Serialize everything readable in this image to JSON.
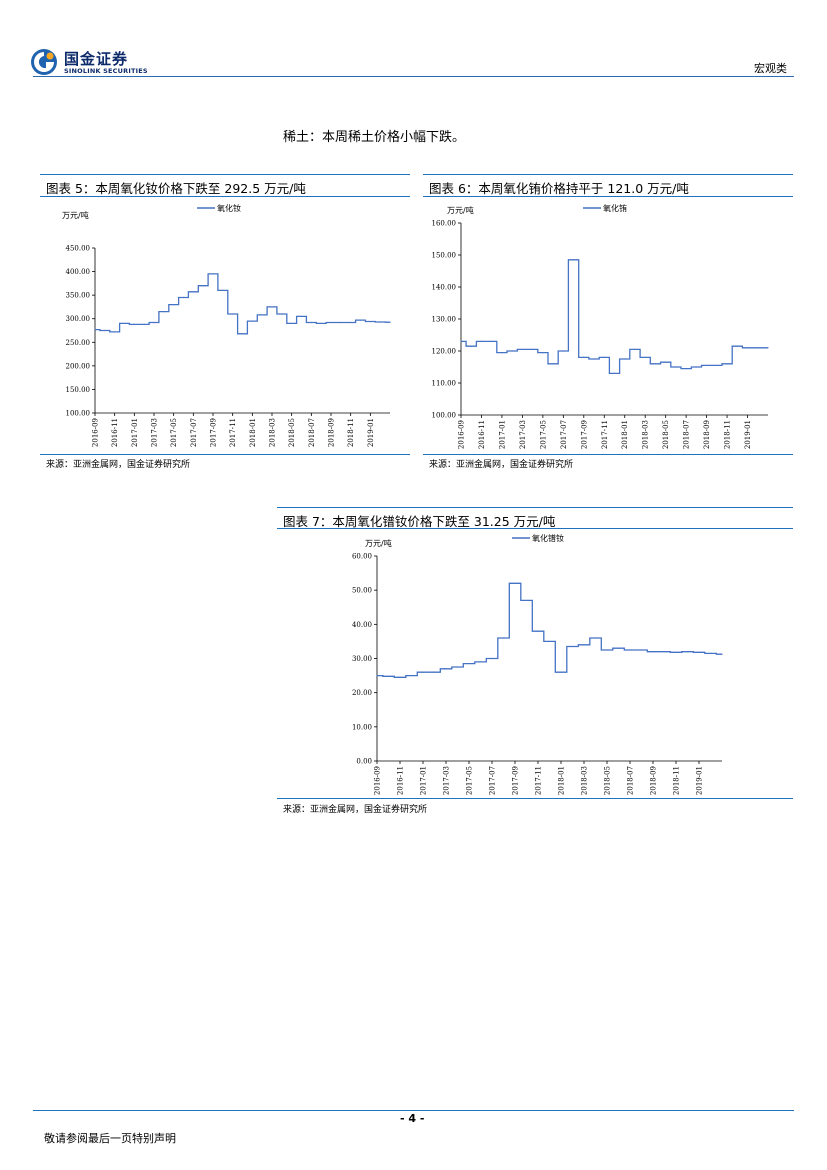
{
  "header": {
    "logo_cn": "国金证券",
    "logo_en": "SINOLINK SECURITIES",
    "category": "宏观类",
    "brand_color": "#0d2a6b",
    "accent_color": "#1e73be"
  },
  "intro": "稀土：本周稀土价格小幅下跌。",
  "figures": [
    {
      "title": "图表 5：本周氧化钕价格下跌至 292.5 万元/吨",
      "source": "来源：亚洲金属网，国金证券研究所",
      "unit": "万元/吨",
      "legend": "氧化钕"
    },
    {
      "title": "图表 6：本周氧化铕价格持平于 121.0 万元/吨",
      "source": "来源：亚洲金属网，国金证券研究所",
      "unit": "万元/吨",
      "legend": "氧化铕"
    },
    {
      "title": "图表 7：本周氧化镨钕价格下跌至 31.25 万元/吨",
      "source": "来源：亚洲金属网，国金证券研究所",
      "unit": "万元/吨",
      "legend": "氧化镨钕"
    }
  ],
  "footer": {
    "page": "- 4 -",
    "disclaimer": "敬请参阅最后一页特别声明"
  },
  "chart_data": [
    {
      "type": "line",
      "series": [
        {
          "name": "氧化钕",
          "color": "#4472c4",
          "x": [
            "2016-09",
            "2016-10",
            "2016-11",
            "2016-12",
            "2017-01",
            "2017-02",
            "2017-03",
            "2017-04",
            "2017-05",
            "2017-06",
            "2017-07",
            "2017-08",
            "2017-09",
            "2017-10",
            "2017-11",
            "2017-12",
            "2018-01",
            "2018-02",
            "2018-03",
            "2018-04",
            "2018-05",
            "2018-06",
            "2018-07",
            "2018-08",
            "2018-09",
            "2018-10",
            "2018-11",
            "2018-12",
            "2019-01",
            "2019-02",
            "2019-03"
          ],
          "values": [
            277,
            275,
            272,
            290,
            288,
            288,
            292,
            315,
            330,
            345,
            357,
            370,
            395,
            360,
            310,
            268,
            295,
            308,
            325,
            310,
            290,
            305,
            292,
            290,
            292,
            292,
            292,
            297,
            294,
            293,
            292.5
          ]
        }
      ],
      "x_ticks": [
        "2016-09",
        "2016-11",
        "2017-01",
        "2017-03",
        "2017-05",
        "2017-07",
        "2017-09",
        "2017-11",
        "2018-01",
        "2018-03",
        "2018-05",
        "2018-07",
        "2018-09",
        "2018-11",
        "2019-01"
      ],
      "y_ticks": [
        "100.00",
        "150.00",
        "200.00",
        "250.00",
        "300.00",
        "350.00",
        "400.00",
        "450.00"
      ],
      "ylim": [
        100,
        450
      ]
    },
    {
      "type": "line",
      "series": [
        {
          "name": "氧化铕",
          "color": "#4472c4",
          "x": [
            "2016-09",
            "2016-10",
            "2016-11",
            "2016-12",
            "2017-01",
            "2017-02",
            "2017-03",
            "2017-04",
            "2017-05",
            "2017-06",
            "2017-07",
            "2017-08",
            "2017-09",
            "2017-10",
            "2017-11",
            "2017-12",
            "2018-01",
            "2018-02",
            "2018-03",
            "2018-04",
            "2018-05",
            "2018-06",
            "2018-07",
            "2018-08",
            "2018-09",
            "2018-10",
            "2018-11",
            "2018-12",
            "2019-01",
            "2019-02",
            "2019-03"
          ],
          "values": [
            123,
            121.5,
            123,
            123,
            119.5,
            120,
            120.5,
            120.5,
            119.5,
            116,
            120,
            148.5,
            118,
            117.5,
            118,
            113,
            117.5,
            120.5,
            118,
            116,
            116.5,
            115,
            114.5,
            115,
            115.5,
            115.5,
            116,
            121.5,
            121,
            121,
            121
          ]
        }
      ],
      "x_ticks": [
        "2016-09",
        "2016-11",
        "2017-01",
        "2017-03",
        "2017-05",
        "2017-07",
        "2017-09",
        "2017-11",
        "2018-01",
        "2018-03",
        "2018-05",
        "2018-07",
        "2018-09",
        "2018-11",
        "2019-01"
      ],
      "y_ticks": [
        "100.00",
        "110.00",
        "120.00",
        "130.00",
        "140.00",
        "150.00",
        "160.00"
      ],
      "ylim": [
        100,
        160
      ]
    },
    {
      "type": "line",
      "series": [
        {
          "name": "氧化镨钕",
          "color": "#4472c4",
          "x": [
            "2016-09",
            "2016-10",
            "2016-11",
            "2016-12",
            "2017-01",
            "2017-02",
            "2017-03",
            "2017-04",
            "2017-05",
            "2017-06",
            "2017-07",
            "2017-08",
            "2017-09",
            "2017-10",
            "2017-11",
            "2017-12",
            "2018-01",
            "2018-02",
            "2018-03",
            "2018-04",
            "2018-05",
            "2018-06",
            "2018-07",
            "2018-08",
            "2018-09",
            "2018-10",
            "2018-11",
            "2018-12",
            "2019-01",
            "2019-02",
            "2019-03"
          ],
          "values": [
            25,
            24.8,
            24.5,
            25,
            26,
            26,
            27,
            27.5,
            28.5,
            29,
            30,
            36,
            52,
            47,
            38,
            35,
            26,
            33.5,
            34,
            36,
            32.5,
            33,
            32.5,
            32.5,
            32,
            32,
            31.8,
            32,
            31.8,
            31.5,
            31.25
          ]
        }
      ],
      "x_ticks": [
        "2016-09",
        "2016-11",
        "2017-01",
        "2017-03",
        "2017-05",
        "2017-07",
        "2017-09",
        "2017-11",
        "2018-01",
        "2018-03",
        "2018-05",
        "2018-07",
        "2018-09",
        "2018-11",
        "2019-01"
      ],
      "y_ticks": [
        "0.00",
        "10.00",
        "20.00",
        "30.00",
        "40.00",
        "50.00",
        "60.00"
      ],
      "ylim": [
        0,
        60
      ]
    }
  ]
}
